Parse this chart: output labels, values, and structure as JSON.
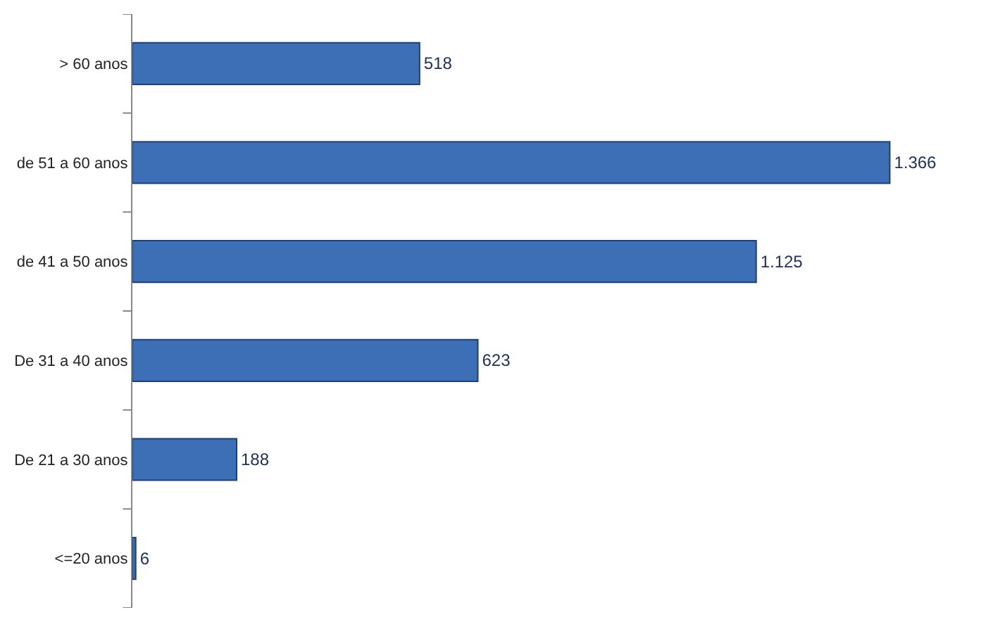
{
  "chart_data": {
    "type": "bar",
    "orientation": "horizontal",
    "categories": [
      "> 60 anos",
      "de 51 a 60 anos",
      "de 41 a 50 anos",
      "De 31 a 40 anos",
      "De 21 a 30 anos",
      "<=20 anos"
    ],
    "values": [
      518,
      1366,
      1125,
      623,
      188,
      6
    ],
    "value_labels": [
      "518",
      "1.366",
      "1.125",
      "623",
      "188",
      "6"
    ],
    "color": "#3d6fb6"
  }
}
